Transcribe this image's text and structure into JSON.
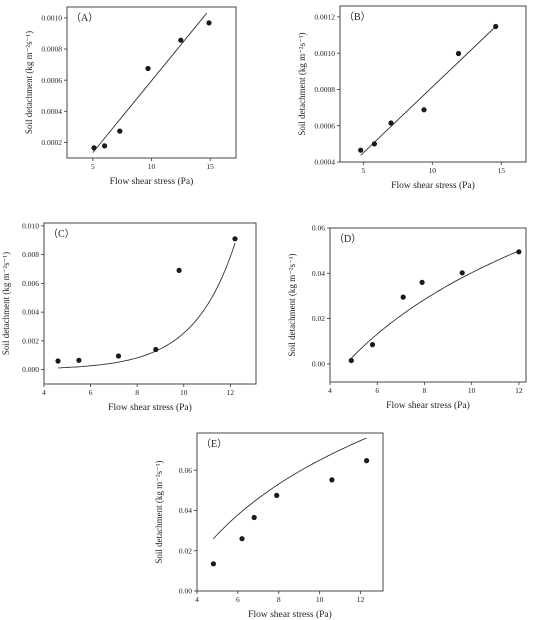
{
  "chart_data": [
    {
      "type": "scatter",
      "panel_label": "（A）",
      "xlabel": "Flow shear stress (Pa)",
      "ylabel": "Soil detachment (kg m⁻²s⁻¹)",
      "xlim": [
        2.8,
        17.2
      ],
      "ylim": [
        0.0001,
        0.00107
      ],
      "xticks": [
        5,
        10,
        15
      ],
      "yticks": [
        0.0002,
        0.0004,
        0.0006,
        0.0008,
        0.001
      ],
      "ytick_labels": [
        "0.0002",
        "0.0004",
        "0.0006",
        "0.0008",
        "0.0010"
      ],
      "points": [
        {
          "x": 5.1,
          "y": 0.000165
        },
        {
          "x": 6.0,
          "y": 0.000178
        },
        {
          "x": 7.3,
          "y": 0.000273
        },
        {
          "x": 9.7,
          "y": 0.000675
        },
        {
          "x": 12.5,
          "y": 0.000857
        },
        {
          "x": 14.9,
          "y": 0.000968
        }
      ],
      "fit": {
        "kind": "linear",
        "from": [
          5.0,
          0.000135
        ],
        "to": [
          14.7,
          0.00103
        ]
      }
    },
    {
      "type": "scatter",
      "panel_label": "（B）",
      "xlabel": "Flow shear stress (Pa)",
      "ylabel": "Soil detachment (kg m⁻²s⁻¹)",
      "xlim": [
        3.3,
        16.8
      ],
      "ylim": [
        0.0004,
        0.00126
      ],
      "xticks": [
        5,
        10,
        15
      ],
      "yticks": [
        0.0004,
        0.0006,
        0.0008,
        0.001,
        0.0012
      ],
      "ytick_labels": [
        "0.0004",
        "0.0006",
        "0.0008",
        "0.0010",
        "0.0012"
      ],
      "points": [
        {
          "x": 4.8,
          "y": 0.000465
        },
        {
          "x": 5.8,
          "y": 0.0005
        },
        {
          "x": 7.0,
          "y": 0.000615
        },
        {
          "x": 9.4,
          "y": 0.000688
        },
        {
          "x": 11.9,
          "y": 0.000998
        },
        {
          "x": 14.6,
          "y": 0.001147
        }
      ],
      "fit": {
        "kind": "linear",
        "from": [
          4.8,
          0.000437
        ],
        "to": [
          14.6,
          0.001147
        ]
      }
    },
    {
      "type": "scatter",
      "panel_label": "（C）",
      "xlabel": "Flow shear stress (Pa)",
      "ylabel": "Soil detachment (kg m⁻²s⁻¹)",
      "xlim": [
        4.0,
        13.1
      ],
      "ylim": [
        -0.001,
        0.0102
      ],
      "xticks": [
        4,
        6,
        8,
        10,
        12
      ],
      "yticks": [
        0.0,
        0.002,
        0.004,
        0.006,
        0.008,
        0.01
      ],
      "ytick_labels": [
        "0.000",
        "0.002",
        "0.004",
        "0.006",
        "0.008",
        "0.010"
      ],
      "points": [
        {
          "x": 4.6,
          "y": 0.0006
        },
        {
          "x": 5.5,
          "y": 0.00065
        },
        {
          "x": 7.2,
          "y": 0.00095
        },
        {
          "x": 8.8,
          "y": 0.0014
        },
        {
          "x": 9.8,
          "y": 0.0069
        },
        {
          "x": 12.2,
          "y": 0.0091
        }
      ],
      "fit": {
        "kind": "exponential",
        "a": 9e-06,
        "b": 0.5643,
        "xrange": [
          4.6,
          12.2
        ]
      }
    },
    {
      "type": "scatter",
      "panel_label": "（D）",
      "xlabel": "Flow shear stress (Pa)",
      "ylabel": "Soil detachment (kg m⁻²s⁻¹)",
      "xlim": [
        4.0,
        12.3
      ],
      "ylim": [
        -0.008,
        0.06
      ],
      "xticks": [
        4,
        6,
        8,
        10,
        12
      ],
      "yticks": [
        0.0,
        0.02,
        0.04,
        0.06
      ],
      "ytick_labels": [
        "0.00",
        "0.02",
        "0.04",
        "0.06"
      ],
      "points": [
        {
          "x": 4.9,
          "y": 0.0015
        },
        {
          "x": 5.8,
          "y": 0.0085
        },
        {
          "x": 7.1,
          "y": 0.0295
        },
        {
          "x": 7.9,
          "y": 0.036
        },
        {
          "x": 9.6,
          "y": 0.0402
        },
        {
          "x": 12.0,
          "y": 0.0495
        }
      ],
      "fit": {
        "kind": "logarithmic",
        "a": -0.0818,
        "b": 0.053,
        "xrange": [
          4.9,
          12.0
        ]
      }
    },
    {
      "type": "scatter",
      "panel_label": "（E）",
      "xlabel": "Flow shear stress (Pa)",
      "ylabel": "Soil detachment (kg m⁻²s⁻¹)",
      "xlim": [
        4.0,
        13.1
      ],
      "ylim": [
        0.0,
        0.0785
      ],
      "xticks": [
        4,
        6,
        8,
        10,
        12
      ],
      "yticks": [
        0.0,
        0.02,
        0.04,
        0.06
      ],
      "ytick_labels": [
        "0.00",
        "0.02",
        "0.04",
        "0.06"
      ],
      "points": [
        {
          "x": 4.8,
          "y": 0.0135
        },
        {
          "x": 6.2,
          "y": 0.026
        },
        {
          "x": 6.8,
          "y": 0.0365
        },
        {
          "x": 7.9,
          "y": 0.0475
        },
        {
          "x": 10.6,
          "y": 0.0552
        },
        {
          "x": 12.3,
          "y": 0.0648
        }
      ],
      "fit": {
        "kind": "logarithmic",
        "a": -0.0575,
        "b": 0.0532,
        "xrange": [
          4.8,
          12.3
        ]
      }
    }
  ]
}
